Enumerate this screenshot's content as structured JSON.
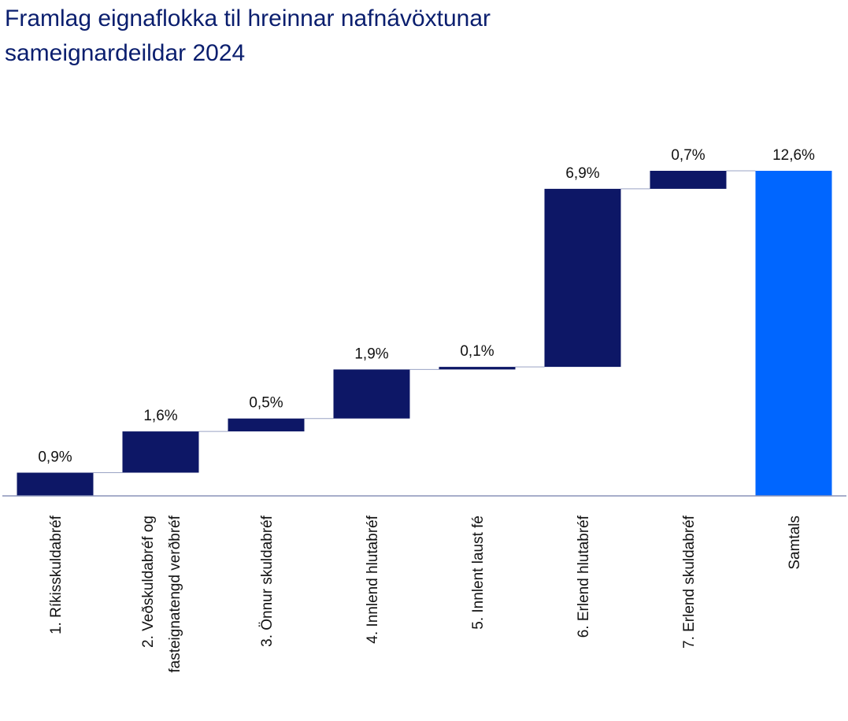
{
  "title_line1": "Framlag eignaflokka til hreinnar nafnávöxtunar",
  "title_line2": "sameignardeildar 2024",
  "colors": {
    "bar": "#0d1766",
    "total": "#0066ff",
    "axis": "#8a94b8",
    "connector": "#9aa3c4",
    "title": "#0a1e6e"
  },
  "chart_data": {
    "type": "waterfall",
    "title": "Framlag eignaflokka til hreinnar nafnávöxtunar sameignardeildar 2024",
    "categories": [
      [
        "1. Ríkisskuldabréf"
      ],
      [
        "2. Veðskuldabréf og",
        "fasteignatengd verðbréf"
      ],
      [
        "3. Önnur skuldabréf"
      ],
      [
        "4. Innlend hlutabréf"
      ],
      [
        "5. Innlent laust fé"
      ],
      [
        "6. Erlend hlutabréf"
      ],
      [
        "7. Erlend skuldabréf"
      ],
      [
        "Samtals"
      ]
    ],
    "values": [
      0.9,
      1.6,
      0.5,
      1.9,
      0.1,
      6.9,
      0.7,
      12.6
    ],
    "labels": [
      "0,9%",
      "1,6%",
      "0,5%",
      "1,9%",
      "0,1%",
      "6,9%",
      "0,7%",
      "12,6%"
    ],
    "total_index": 7,
    "ylim": [
      0,
      12.6
    ]
  }
}
